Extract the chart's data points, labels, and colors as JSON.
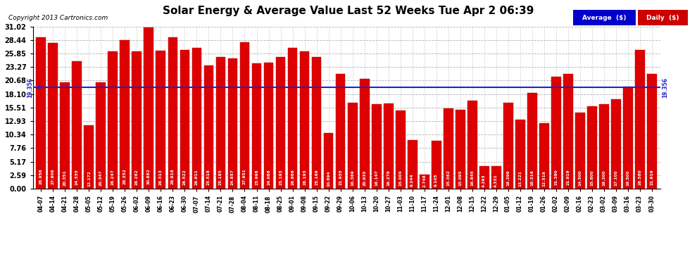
{
  "title": "Solar Energy & Average Value Last 52 Weeks Tue Apr 2 06:39",
  "copyright": "Copyright 2013 Cartronics.com",
  "average_line": 19.356,
  "bar_color": "#dd0000",
  "average_line_color": "#2222cc",
  "background_color": "#ffffff",
  "plot_bg_color": "#ffffff",
  "grid_color": "#aaaaaa",
  "ylim_max": 31.02,
  "yticks": [
    0.0,
    2.59,
    5.17,
    7.76,
    10.34,
    12.93,
    15.51,
    18.1,
    20.68,
    23.27,
    25.85,
    28.44,
    31.02
  ],
  "legend_avg_color": "#0000cc",
  "legend_daily_color": "#cc0000",
  "categories": [
    "04-07",
    "04-14",
    "04-21",
    "04-28",
    "05-05",
    "05-12",
    "05-19",
    "05-26",
    "06-02",
    "06-09",
    "06-16",
    "06-23",
    "06-30",
    "07-07",
    "07-14",
    "07-21",
    "07-28",
    "08-04",
    "08-11",
    "08-18",
    "08-25",
    "09-01",
    "09-08",
    "09-15",
    "09-22",
    "09-29",
    "10-06",
    "10-13",
    "10-20",
    "10-27",
    "11-03",
    "11-10",
    "11-17",
    "11-24",
    "12-01",
    "12-08",
    "12-15",
    "12-22",
    "12-29",
    "01-05",
    "01-12",
    "01-19",
    "01-26",
    "02-02",
    "02-09",
    "02-16",
    "02-23",
    "03-02",
    "03-09",
    "03-16",
    "03-23",
    "03-30"
  ],
  "values": [
    28.956,
    27.906,
    20.351,
    24.335,
    12.172,
    20.347,
    26.247,
    28.352,
    26.262,
    30.882,
    26.313,
    28.918,
    26.522,
    26.911,
    23.518,
    25.185,
    24.857,
    27.951,
    23.998,
    24.068,
    25.193,
    26.866,
    26.193,
    25.169,
    10.694,
    21.935,
    16.369,
    20.935,
    16.147,
    16.279,
    15.004,
    9.244,
    2.748,
    9.105,
    15.362,
    15.095,
    16.845,
    4.293,
    4.331,
    16.399,
    13.221,
    18.316,
    12.518,
    21.38,
    21.919,
    14.5,
    15.8,
    16.2,
    17.1,
    19.5,
    26.58,
    21.919
  ]
}
